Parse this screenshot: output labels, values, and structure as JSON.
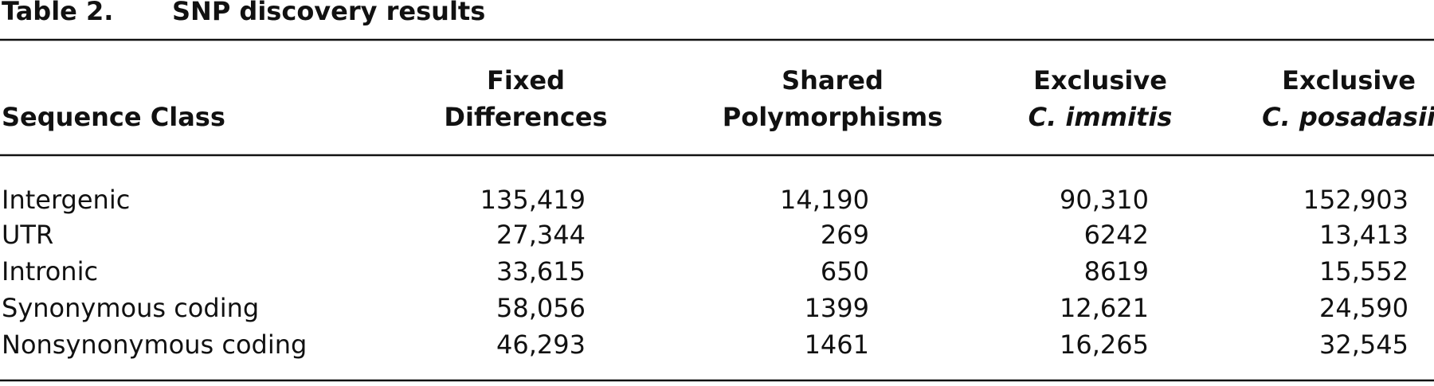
{
  "table": {
    "label": "Table 2.",
    "title": "SNP discovery results",
    "columns": [
      [
        "Sequence Class"
      ],
      [
        "Fixed",
        "Differences"
      ],
      [
        "Shared",
        "Polymorphisms"
      ],
      [
        "Exclusive",
        "C. immitis"
      ],
      [
        "Exclusive",
        "C. posadasii"
      ]
    ],
    "rows": [
      [
        "Intergenic",
        "135,419",
        "14,190",
        "90,310",
        "152,903"
      ],
      [
        "UTR",
        "27,344",
        "269",
        "6242",
        "13,413"
      ],
      [
        "Intronic",
        "33,615",
        "650",
        "8619",
        "15,552"
      ],
      [
        "Synonymous coding",
        "58,056",
        "1399",
        "12,621",
        "24,590"
      ],
      [
        "Nonsynonymous coding",
        "46,293",
        "1461",
        "16,265",
        "32,545"
      ]
    ]
  }
}
